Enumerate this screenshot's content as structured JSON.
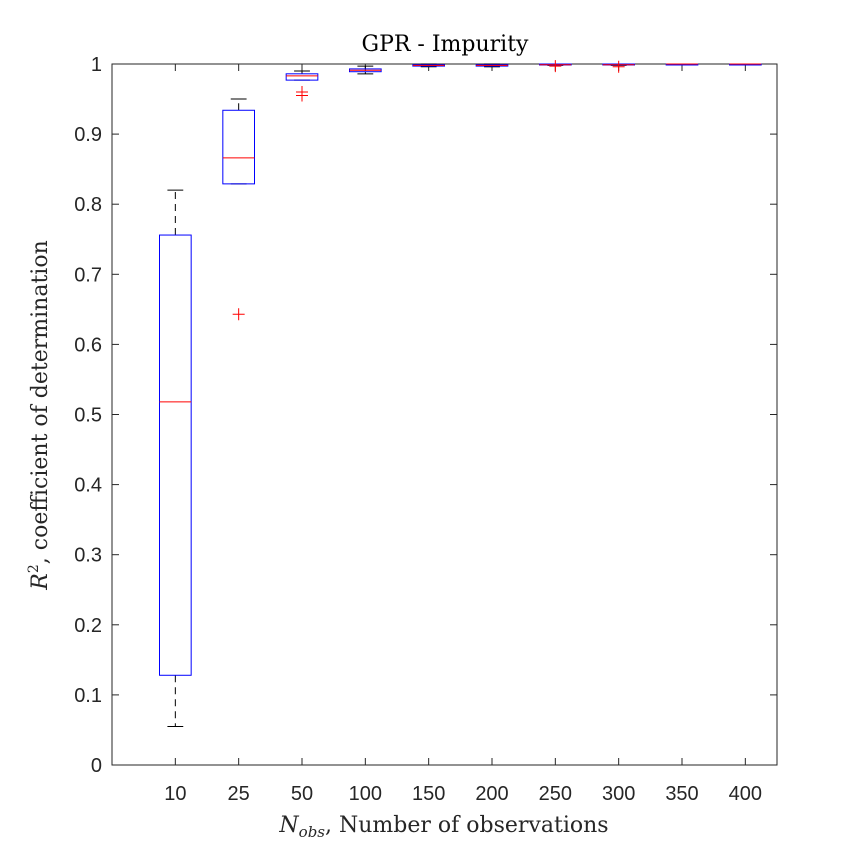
{
  "chart_data": {
    "type": "box",
    "title": "GPR - Impurity",
    "xlabel": {
      "symbol": "N",
      "subscript": "obs",
      "text": ", Number of observations"
    },
    "ylabel": {
      "symbol": "R",
      "superscript": "2",
      "text": ", coefficient of determination"
    },
    "ylim": [
      0,
      1
    ],
    "yticks": [
      "0",
      "0.1",
      "0.2",
      "0.3",
      "0.4",
      "0.5",
      "0.6",
      "0.7",
      "0.8",
      "0.9",
      "1"
    ],
    "grid": false,
    "colors": {
      "box": "#0000ff",
      "median": "#ff0000",
      "whisker": "#000000",
      "outlier": "#ff0000",
      "axis": "#262626"
    },
    "categories": [
      "10",
      "25",
      "50",
      "100",
      "150",
      "200",
      "250",
      "300",
      "350",
      "400"
    ],
    "boxes": [
      {
        "category": "10",
        "lower_whisker": 0.055,
        "q1": 0.128,
        "median": 0.518,
        "q3": 0.756,
        "upper_whisker": 0.82,
        "outliers": []
      },
      {
        "category": "25",
        "lower_whisker": 0.829,
        "q1": 0.829,
        "median": 0.866,
        "q3": 0.934,
        "upper_whisker": 0.95,
        "outliers": [
          0.643
        ]
      },
      {
        "category": "50",
        "lower_whisker": 0.977,
        "q1": 0.977,
        "median": 0.983,
        "q3": 0.986,
        "upper_whisker": 0.99,
        "outliers": [
          0.96,
          0.955
        ]
      },
      {
        "category": "100",
        "lower_whisker": 0.986,
        "q1": 0.989,
        "median": 0.991,
        "q3": 0.993,
        "upper_whisker": 0.997,
        "outliers": []
      },
      {
        "category": "150",
        "lower_whisker": 0.996,
        "q1": 0.997,
        "median": 0.998,
        "q3": 0.999,
        "upper_whisker": 1.0,
        "outliers": []
      },
      {
        "category": "200",
        "lower_whisker": 0.996,
        "q1": 0.997,
        "median": 0.998,
        "q3": 0.999,
        "upper_whisker": 1.0,
        "outliers": []
      },
      {
        "category": "250",
        "lower_whisker": 0.998,
        "q1": 0.999,
        "median": 0.999,
        "q3": 1.0,
        "upper_whisker": 1.0,
        "outliers": [
          0.997
        ]
      },
      {
        "category": "300",
        "lower_whisker": 0.998,
        "q1": 0.999,
        "median": 0.999,
        "q3": 1.0,
        "upper_whisker": 1.0,
        "outliers": [
          0.996
        ]
      },
      {
        "category": "350",
        "lower_whisker": 0.999,
        "q1": 0.999,
        "median": 1.0,
        "q3": 1.0,
        "upper_whisker": 1.0,
        "outliers": []
      },
      {
        "category": "400",
        "lower_whisker": 0.999,
        "q1": 1.0,
        "median": 1.0,
        "q3": 1.0,
        "upper_whisker": 1.0,
        "outliers": []
      }
    ]
  }
}
